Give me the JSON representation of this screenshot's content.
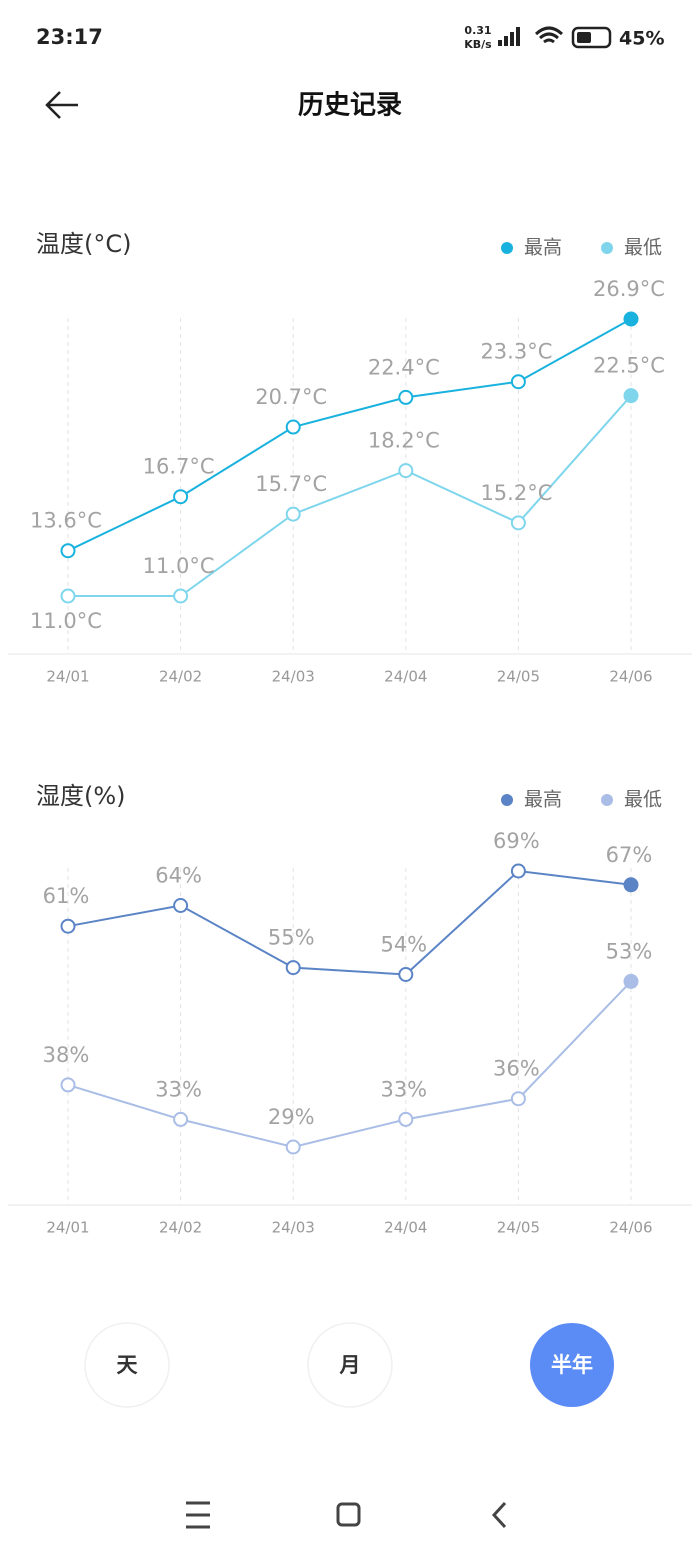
{
  "status_bar": {
    "time": "23:17",
    "net_speed": "0.31",
    "net_unit": "KB/s",
    "battery": "45%"
  },
  "header": {
    "title": "历史记录"
  },
  "chart_data": [
    {
      "type": "line",
      "title": "温度(°C)",
      "categories": [
        "24/01",
        "24/02",
        "24/03",
        "24/04",
        "24/05",
        "24/06"
      ],
      "series": [
        {
          "name": "最高",
          "color": "#19b2de",
          "values": [
            13.6,
            16.7,
            20.7,
            22.4,
            23.3,
            26.9
          ],
          "value_labels": [
            "13.6°C",
            "16.7°C",
            "20.7°C",
            "22.4°C",
            "23.3°C",
            "26.9°C"
          ]
        },
        {
          "name": "最低",
          "color": "#7fd6ec",
          "values": [
            11.0,
            11.0,
            15.7,
            18.2,
            15.2,
            22.5
          ],
          "value_labels": [
            "11.0°C",
            "11.0°C",
            "15.7°C",
            "18.2°C",
            "15.2°C",
            "22.5°C"
          ]
        }
      ]
    },
    {
      "type": "line",
      "title": "湿度(%)",
      "categories": [
        "24/01",
        "24/02",
        "24/03",
        "24/04",
        "24/05",
        "24/06"
      ],
      "series": [
        {
          "name": "最高",
          "color": "#5b84c6",
          "values": [
            61,
            64,
            55,
            54,
            69,
            67
          ],
          "value_labels": [
            "61%",
            "64%",
            "55%",
            "54%",
            "69%",
            "67%"
          ]
        },
        {
          "name": "最低",
          "color": "#a9bde6",
          "values": [
            38,
            33,
            29,
            33,
            36,
            53
          ],
          "value_labels": [
            "38%",
            "33%",
            "29%",
            "33%",
            "36%",
            "53%"
          ]
        }
      ]
    }
  ],
  "period_buttons": [
    {
      "label": "天",
      "selected": false
    },
    {
      "label": "月",
      "selected": false
    },
    {
      "label": "半年",
      "selected": true
    }
  ]
}
